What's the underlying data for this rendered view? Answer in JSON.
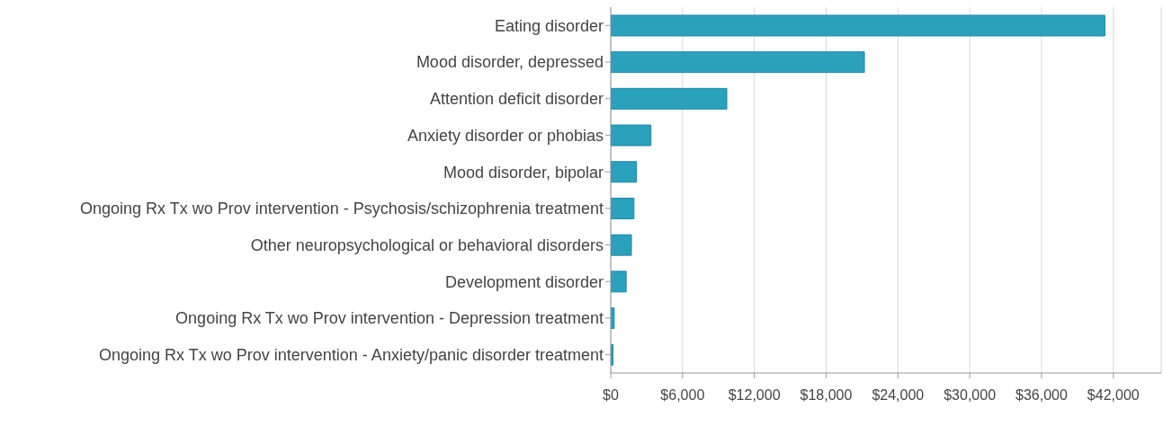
{
  "chart_data": {
    "type": "bar",
    "orientation": "horizontal",
    "categories": [
      "Eating disorder",
      "Mood disorder, depressed",
      "Attention deficit disorder",
      "Anxiety disorder or phobias",
      "Mood disorder, bipolar",
      "Ongoing Rx Tx wo Prov intervention - Psychosis/schizophrenia treatment",
      "Other neuropsychological or behavioral disorders",
      "Development disorder",
      "Ongoing Rx Tx wo Prov intervention - Depression treatment",
      "Ongoing Rx Tx wo Prov intervention - Anxiety/panic disorder treatment"
    ],
    "values": [
      41300,
      21200,
      9700,
      3360,
      2160,
      1940,
      1730,
      1290,
      290,
      190
    ],
    "color": "#2aa1bd",
    "xlim": [
      0,
      46000
    ],
    "xticks": [
      {
        "value": 0,
        "label": "$0"
      },
      {
        "value": 6000,
        "label": "$6,000"
      },
      {
        "value": 12000,
        "label": "$12,000"
      },
      {
        "value": 18000,
        "label": "$18,000"
      },
      {
        "value": 24000,
        "label": "$24,000"
      },
      {
        "value": 30000,
        "label": "$30,000"
      },
      {
        "value": 36000,
        "label": "$36,000"
      },
      {
        "value": 42000,
        "label": "$42,000"
      }
    ],
    "grid": "x"
  }
}
